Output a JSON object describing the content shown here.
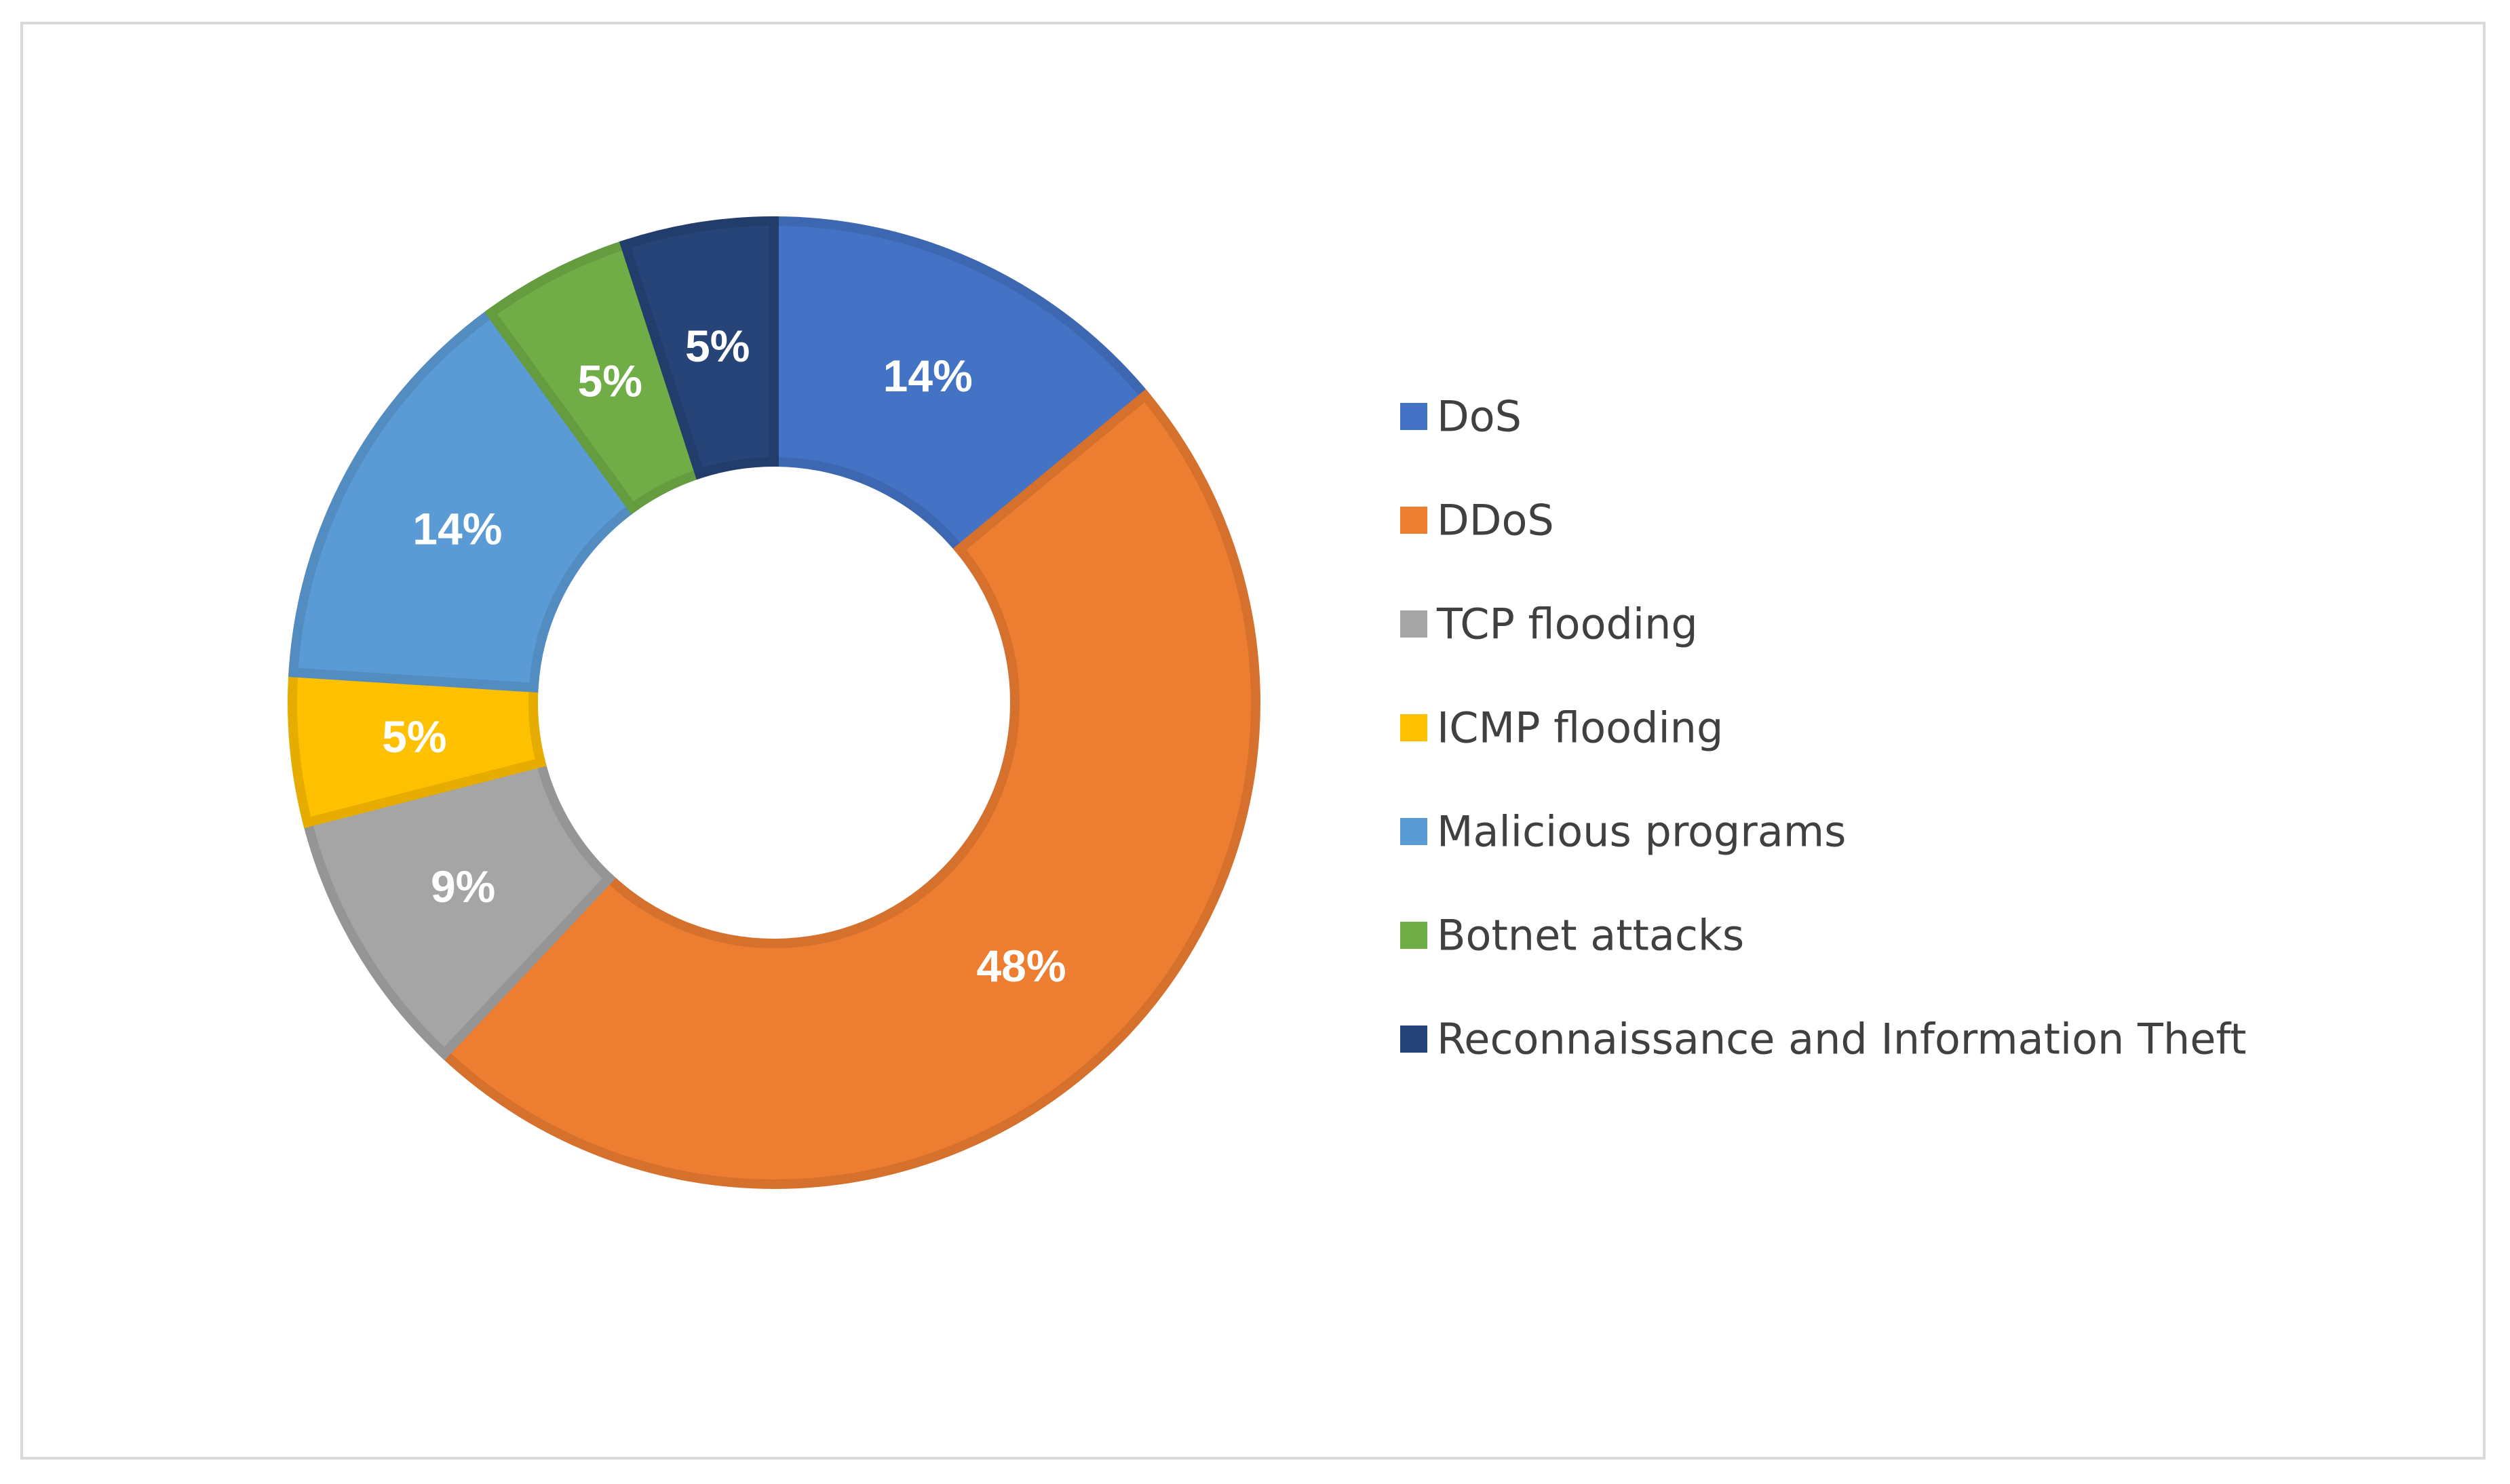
{
  "chart_data": {
    "type": "pie",
    "variant": "donut",
    "title": "",
    "legend_position": "right",
    "categories": [
      "DoS",
      "DDoS",
      "TCP flooding",
      "ICMP flooding",
      "Malicious programs",
      "Botnet attacks",
      "Reconnaissance and Information Theft"
    ],
    "values": [
      14,
      48,
      9,
      5,
      14,
      5,
      5
    ],
    "labels": [
      "14%",
      "48%",
      "9%",
      "5%",
      "14%",
      "5%",
      "5%"
    ],
    "colors": [
      "#4472c4",
      "#ed7d31",
      "#a5a5a5",
      "#ffc000",
      "#5b9bd5",
      "#70ad47",
      "#264478"
    ],
    "order": [
      0,
      1,
      2,
      3,
      4,
      5,
      6
    ]
  }
}
